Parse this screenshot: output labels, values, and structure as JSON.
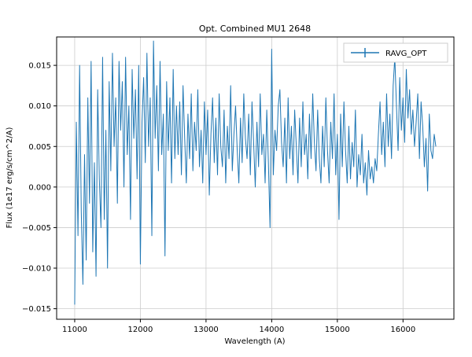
{
  "figure": {
    "title": "Opt. Combined MU1 2648",
    "xlabel": "Wavelength (A)",
    "ylabel": "Flux (1e17 erg/s/cm^2/A)",
    "legend_label": "RAVG_OPT"
  },
  "chart_data": {
    "type": "line",
    "title": "Opt. Combined MU1 2648",
    "xlabel": "Wavelength (A)",
    "ylabel": "Flux (1e17 erg/s/cm^2/A)",
    "grid": true,
    "legend_position": "upper right",
    "line_color": "#1f77b4",
    "xlim": [
      10725,
      16775
    ],
    "ylim": [
      -0.0163,
      0.0185
    ],
    "xticks": [
      11000,
      12000,
      13000,
      14000,
      15000,
      16000
    ],
    "yticks": [
      -0.015,
      -0.01,
      -0.005,
      0.0,
      0.005,
      0.01,
      0.015
    ],
    "series": [
      {
        "name": "RAVG_OPT",
        "x_start": 11000,
        "x_step": 25,
        "y": [
          -0.0145,
          0.008,
          -0.006,
          0.015,
          -0.003,
          -0.012,
          0.004,
          -0.009,
          0.011,
          -0.002,
          0.0155,
          -0.008,
          0.003,
          -0.011,
          0.012,
          0.001,
          -0.005,
          0.016,
          -0.004,
          0.007,
          -0.01,
          0.013,
          0.002,
          0.0165,
          0.005,
          0.011,
          -0.002,
          0.0155,
          0.007,
          0.013,
          0.0,
          0.016,
          0.004,
          0.01,
          -0.004,
          0.0145,
          0.006,
          0.012,
          0.001,
          0.015,
          -0.0095,
          0.008,
          0.0135,
          0.003,
          0.0165,
          0.005,
          0.011,
          -0.006,
          0.018,
          0.006,
          0.0125,
          0.002,
          0.0155,
          0.004,
          0.009,
          -0.0085,
          0.013,
          0.0045,
          0.011,
          0.0005,
          0.0145,
          0.0035,
          0.01,
          0.004,
          0.0105,
          0.0015,
          0.0125,
          0.006,
          0.0005,
          0.009,
          0.0035,
          0.0115,
          0.002,
          0.008,
          0.0045,
          0.012,
          0.0025,
          0.007,
          0.0005,
          0.0105,
          0.004,
          0.0095,
          -0.001,
          0.0065,
          0.011,
          0.003,
          0.0085,
          0.0015,
          0.0115,
          0.005,
          0.0025,
          0.0095,
          0.0005,
          0.0075,
          0.0035,
          0.0125,
          0.002,
          0.0065,
          0.01,
          0.0045,
          0.0005,
          0.0085,
          0.003,
          0.0115,
          0.006,
          0.0035,
          0.009,
          0.0015,
          0.0105,
          0.0055,
          0.0,
          0.008,
          0.0025,
          0.0115,
          0.004,
          0.0065,
          0.0005,
          0.0095,
          0.003,
          -0.005,
          0.017,
          0.0015,
          0.007,
          0.0045,
          0.01,
          0.012,
          0.0055,
          0.0025,
          0.0085,
          0.0005,
          0.011,
          0.0035,
          0.0075,
          0.0015,
          0.0095,
          0.005,
          0.0005,
          0.0085,
          0.0025,
          0.0105,
          0.004,
          0.0065,
          0.001,
          0.009,
          0.0035,
          0.0115,
          0.0055,
          0.002,
          0.0095,
          0.0035,
          0.0005,
          0.0075,
          0.0025,
          0.011,
          0.0045,
          0.0005,
          0.008,
          0.0035,
          0.0115,
          0.0015,
          0.0065,
          -0.004,
          0.009,
          0.0025,
          0.0105,
          0.0045,
          0.0005,
          0.0075,
          0.001,
          0.0055,
          0.0025,
          0.0095,
          0.0,
          0.004,
          0.0015,
          0.0065,
          0.0005,
          0.003,
          -0.001,
          0.0045,
          0.001,
          0.0025,
          0.0005,
          0.0035,
          0.002,
          0.0065,
          0.0105,
          0.004,
          0.008,
          0.0025,
          0.0115,
          0.005,
          0.009,
          0.0035,
          0.0125,
          0.016,
          0.01,
          0.0045,
          0.0135,
          0.007,
          0.011,
          0.0055,
          0.0145,
          0.0085,
          0.012,
          0.0065,
          0.0095,
          0.005,
          0.008,
          0.0115,
          0.0035,
          0.0105,
          0.0075,
          0.0025,
          0.006,
          -0.0005,
          0.009,
          0.0045,
          0.0035,
          0.0065,
          0.005
        ]
      }
    ]
  }
}
